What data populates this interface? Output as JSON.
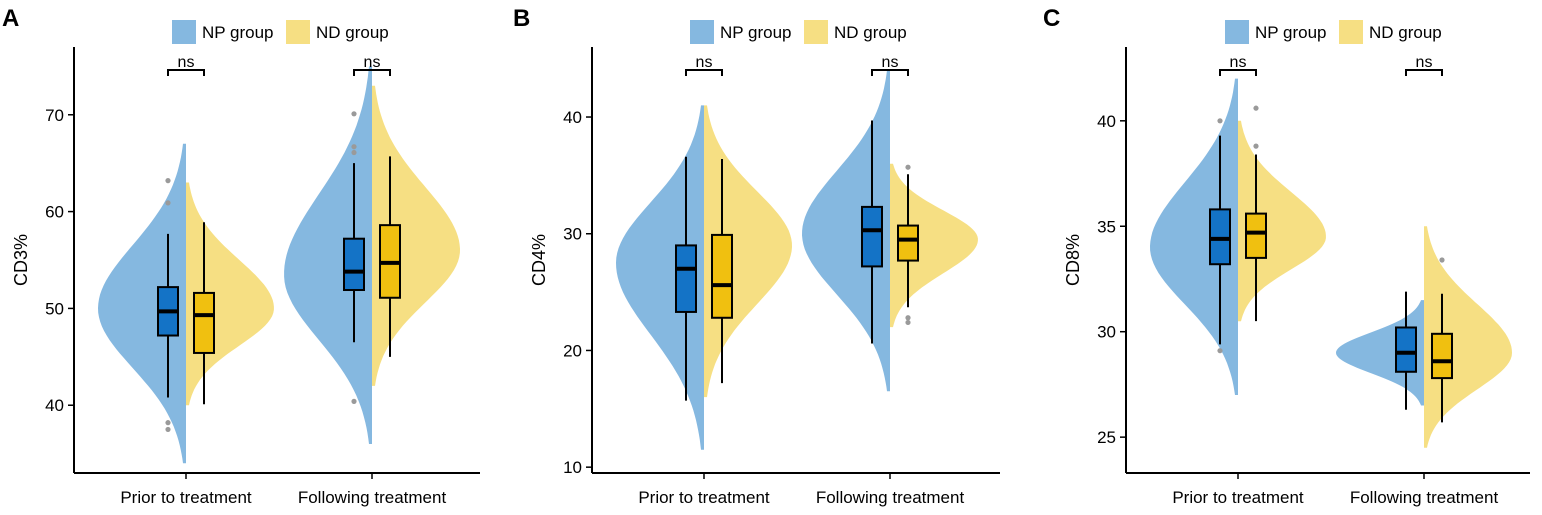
{
  "colors": {
    "np_violin": "#85b8e0",
    "nd_violin": "#f6df83",
    "np_box": "#1473c6",
    "nd_box": "#f0c010",
    "outlier": "#9a9a9a",
    "axis": "#000000"
  },
  "chart_data": [
    {
      "panel_label": "A",
      "type": "split-violin-boxplot",
      "ylabel": "CD3%",
      "ylim": [
        33,
        77
      ],
      "yticks": [
        40,
        50,
        60,
        70
      ],
      "legend": [
        "NP group",
        "ND group"
      ],
      "categories": [
        "Prior to treatment",
        "Following treatment"
      ],
      "significance": [
        "ns",
        "ns"
      ],
      "series": [
        {
          "name": "NP group",
          "groups": [
            {
              "category": "Prior to treatment",
              "violin_range": [
                34,
                67
              ],
              "density_peak": 50,
              "box": {
                "whisker_low": 40.8,
                "q1": 47.2,
                "median": 49.7,
                "q3": 52.2,
                "whisker_high": 57.7
              },
              "outliers": [
                63.2,
                60.9,
                38.2,
                37.5
              ]
            },
            {
              "category": "Following treatment",
              "violin_range": [
                36,
                75
              ],
              "density_peak": 53.5,
              "box": {
                "whisker_low": 46.5,
                "q1": 51.9,
                "median": 53.8,
                "q3": 57.2,
                "whisker_high": 65
              },
              "outliers": [
                70.1,
                66.7,
                66.1,
                40.4
              ]
            }
          ]
        },
        {
          "name": "ND group",
          "groups": [
            {
              "category": "Prior to treatment",
              "violin_range": [
                40,
                63
              ],
              "density_peak": 50,
              "box": {
                "whisker_low": 40.1,
                "q1": 45.4,
                "median": 49.3,
                "q3": 51.6,
                "whisker_high": 58.9
              },
              "outliers": []
            },
            {
              "category": "Following treatment",
              "violin_range": [
                42,
                73
              ],
              "density_peak": 56,
              "box": {
                "whisker_low": 45,
                "q1": 51.1,
                "median": 54.7,
                "q3": 58.6,
                "whisker_high": 65.7
              },
              "outliers": []
            }
          ]
        }
      ]
    },
    {
      "panel_label": "B",
      "type": "split-violin-boxplot",
      "ylabel": "CD4%",
      "ylim": [
        9.5,
        46
      ],
      "yticks": [
        10,
        20,
        30,
        40
      ],
      "legend": [
        "NP group",
        "ND group"
      ],
      "categories": [
        "Prior to treatment",
        "Following treatment"
      ],
      "significance": [
        "ns",
        "ns"
      ],
      "series": [
        {
          "name": "NP group",
          "groups": [
            {
              "category": "Prior to treatment",
              "violin_range": [
                11.5,
                41
              ],
              "density_peak": 27.5,
              "box": {
                "whisker_low": 15.7,
                "q1": 23.3,
                "median": 27,
                "q3": 29,
                "whisker_high": 36.6
              },
              "outliers": []
            },
            {
              "category": "Following treatment",
              "violin_range": [
                16.5,
                44
              ],
              "density_peak": 30,
              "box": {
                "whisker_low": 20.6,
                "q1": 27.2,
                "median": 30.3,
                "q3": 32.3,
                "whisker_high": 39.7
              },
              "outliers": []
            }
          ]
        },
        {
          "name": "ND group",
          "groups": [
            {
              "category": "Prior to treatment",
              "violin_range": [
                16,
                41
              ],
              "density_peak": 29,
              "box": {
                "whisker_low": 17.2,
                "q1": 22.8,
                "median": 25.6,
                "q3": 29.9,
                "whisker_high": 36.4
              },
              "outliers": []
            },
            {
              "category": "Following treatment",
              "violin_range": [
                22,
                36
              ],
              "density_peak": 29.5,
              "box": {
                "whisker_low": 23.7,
                "q1": 27.7,
                "median": 29.5,
                "q3": 30.7,
                "whisker_high": 35.1
              },
              "outliers": [
                35.7,
                22.8,
                22.4
              ]
            }
          ]
        }
      ]
    },
    {
      "panel_label": "C",
      "type": "split-violin-boxplot",
      "ylabel": "CD8%",
      "ylim": [
        23.3,
        43.5
      ],
      "yticks": [
        25,
        30,
        35,
        40
      ],
      "legend": [
        "NP group",
        "ND group"
      ],
      "categories": [
        "Prior to treatment",
        "Following treatment"
      ],
      "significance": [
        "ns",
        "ns"
      ],
      "series": [
        {
          "name": "NP group",
          "groups": [
            {
              "category": "Prior to treatment",
              "violin_range": [
                27,
                42
              ],
              "density_peak": 34,
              "box": {
                "whisker_low": 29.4,
                "q1": 33.2,
                "median": 34.4,
                "q3": 35.8,
                "whisker_high": 39.3
              },
              "outliers": [
                40,
                29.1
              ]
            },
            {
              "category": "Following treatment",
              "violin_range": [
                26.5,
                31.5
              ],
              "density_peak": 29,
              "box": {
                "whisker_low": 26.3,
                "q1": 28.1,
                "median": 29,
                "q3": 30.2,
                "whisker_high": 31.9
              },
              "outliers": []
            }
          ]
        },
        {
          "name": "ND group",
          "groups": [
            {
              "category": "Prior to treatment",
              "violin_range": [
                30.5,
                40
              ],
              "density_peak": 34.5,
              "box": {
                "whisker_low": 30.5,
                "q1": 33.5,
                "median": 34.7,
                "q3": 35.6,
                "whisker_high": 38.4
              },
              "outliers": [
                40.6,
                38.8
              ]
            },
            {
              "category": "Following treatment",
              "violin_range": [
                24.5,
                35
              ],
              "density_peak": 29,
              "box": {
                "whisker_low": 25.7,
                "q1": 27.8,
                "median": 28.6,
                "q3": 29.9,
                "whisker_high": 31.8
              },
              "outliers": [
                33.4
              ]
            }
          ]
        }
      ]
    }
  ]
}
